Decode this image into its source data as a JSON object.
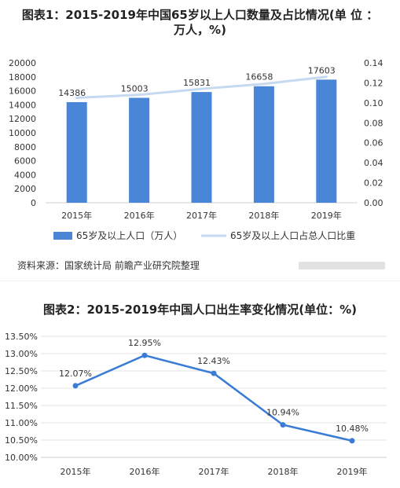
{
  "chart_data": [
    {
      "type": "bar",
      "title": "图表1：2015-2019年中国65岁以上人口数量及占比情况(单 位 ：",
      "title_line2": "万人，%)",
      "categories": [
        "2015年",
        "2016年",
        "2017年",
        "2018年",
        "2019年"
      ],
      "series": [
        {
          "name": "65岁及以上人口（万人）",
          "type": "bar",
          "axis": "left",
          "values": [
            14386,
            15003,
            15831,
            16658,
            17603
          ],
          "color": "#4a86d8"
        },
        {
          "name": "65岁及以上人口占总人口比重",
          "type": "line",
          "axis": "right",
          "values": [
            0.105,
            0.108,
            0.114,
            0.119,
            0.126
          ],
          "color": "#c5d9f1"
        }
      ],
      "ylim_left": [
        0,
        20000
      ],
      "yticks_left": [
        "0",
        "2000",
        "4000",
        "6000",
        "8000",
        "10000",
        "12000",
        "14000",
        "16000",
        "18000",
        "20000"
      ],
      "ylim_right": [
        0,
        0.14
      ],
      "yticks_right": [
        "0.00",
        "0.02",
        "0.04",
        "0.06",
        "0.08",
        "0.10",
        "0.12",
        "0.14"
      ],
      "legend_position": "bottom",
      "grid": false
    },
    {
      "type": "line",
      "title": "图表2：2015-2019年中国人口出生率变化情况(单位：%)",
      "categories": [
        "2015年",
        "2016年",
        "2017年",
        "2018年",
        "2019年"
      ],
      "series": [
        {
          "values": [
            12.07,
            12.95,
            12.43,
            10.94,
            10.48
          ],
          "labels": [
            "12.07%",
            "12.95%",
            "12.43%",
            "10.94%",
            "10.48%"
          ],
          "color": "#3a7bd5"
        }
      ],
      "ylim": [
        10.0,
        13.5
      ],
      "yticks": [
        "10.00%",
        "10.50%",
        "11.00%",
        "11.50%",
        "12.00%",
        "12.50%",
        "13.00%",
        "13.50%"
      ],
      "grid": true
    }
  ],
  "source": "资料来源：国家统计局 前瞻产业研究院整理"
}
